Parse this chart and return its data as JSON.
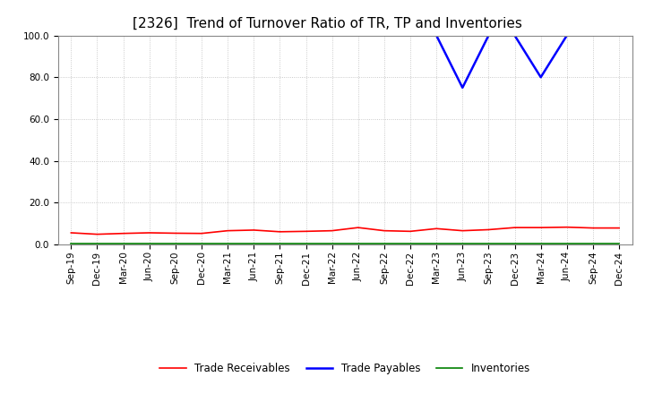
{
  "title": "[2326]  Trend of Turnover Ratio of TR, TP and Inventories",
  "xlabels": [
    "Sep-19",
    "Dec-19",
    "Mar-20",
    "Jun-20",
    "Sep-20",
    "Dec-20",
    "Mar-21",
    "Jun-21",
    "Sep-21",
    "Dec-21",
    "Mar-22",
    "Jun-22",
    "Sep-22",
    "Dec-22",
    "Mar-23",
    "Jun-23",
    "Sep-23",
    "Dec-23",
    "Mar-24",
    "Jun-24",
    "Sep-24",
    "Dec-24"
  ],
  "trade_receivables": [
    5.5,
    4.8,
    5.2,
    5.5,
    5.3,
    5.2,
    6.5,
    6.8,
    6.0,
    6.2,
    6.5,
    8.0,
    6.5,
    6.2,
    7.5,
    6.5,
    7.0,
    8.0,
    8.0,
    8.2,
    7.8,
    7.8
  ],
  "trade_payables": [
    null,
    null,
    null,
    null,
    null,
    null,
    null,
    null,
    null,
    null,
    null,
    null,
    null,
    null,
    100.0,
    75.0,
    100.0,
    100.0,
    80.0,
    100.0,
    null,
    null
  ],
  "inventories": [
    0.3,
    0.3,
    0.3,
    0.3,
    0.3,
    0.3,
    0.3,
    0.3,
    0.3,
    0.3,
    0.3,
    0.3,
    0.3,
    0.3,
    0.3,
    0.3,
    0.3,
    0.3,
    0.3,
    0.3,
    0.3,
    0.3
  ],
  "colors": {
    "trade_receivables": "#FF0000",
    "trade_payables": "#0000FF",
    "inventories": "#008000"
  },
  "ylim": [
    0.0,
    100.0
  ],
  "yticks": [
    0.0,
    20.0,
    40.0,
    60.0,
    80.0,
    100.0
  ],
  "background_color": "#FFFFFF",
  "grid_color": "#BBBBBB",
  "title_fontsize": 11,
  "tick_fontsize": 7.5,
  "legend_fontsize": 8.5
}
